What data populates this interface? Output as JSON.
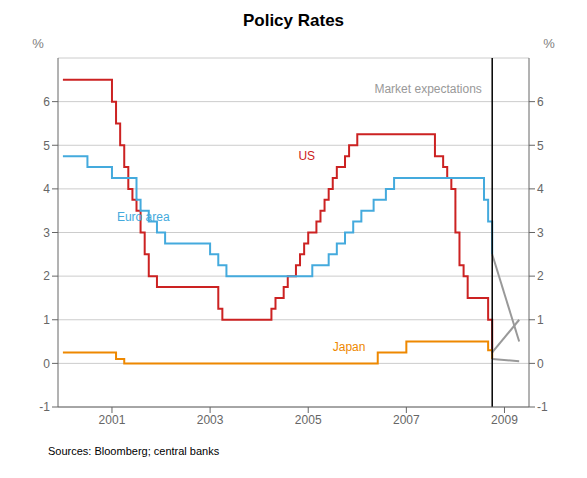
{
  "chart_data": {
    "type": "line",
    "title": "Policy Rates",
    "source": "Sources: Bloomberg; central banks",
    "ylabel": "%",
    "y2label": "%",
    "xlim": [
      1999.9,
      2009.5
    ],
    "xticks": [
      2001,
      2003,
      2005,
      2007,
      2009
    ],
    "ylim": [
      -1,
      7
    ],
    "yticks": [
      -1,
      0,
      1,
      2,
      3,
      4,
      5,
      6
    ],
    "y2lim": [
      -1,
      7
    ],
    "y2ticks": [
      -1,
      0,
      1,
      2,
      3,
      4,
      5,
      6
    ],
    "grid": true,
    "series": [
      {
        "name": "US",
        "type": "step",
        "color": "#cc2222",
        "x": [
          2000.0,
          2001.0,
          2001.0,
          2001.083,
          2001.167,
          2001.25,
          2001.333,
          2001.417,
          2001.5,
          2001.583,
          2001.667,
          2001.75,
          2001.917,
          2002.0,
          2003.167,
          2003.25,
          2003.583,
          2004.25,
          2004.333,
          2004.5,
          2004.583,
          2004.75,
          2004.833,
          2004.917,
          2005.0,
          2005.167,
          2005.25,
          2005.333,
          2005.417,
          2005.5,
          2005.583,
          2005.75,
          2005.833,
          2006.0,
          2006.583,
          2007.583,
          2007.583,
          2007.75,
          2007.833,
          2007.917,
          2008.0,
          2008.083,
          2008.167,
          2008.25,
          2008.667,
          2008.75
        ],
        "values": [
          6.5,
          6.5,
          6.0,
          5.5,
          5.0,
          4.5,
          4.0,
          3.75,
          3.5,
          3.0,
          2.5,
          2.0,
          1.75,
          1.75,
          1.25,
          1.0,
          1.0,
          1.25,
          1.5,
          1.75,
          2.0,
          2.25,
          2.5,
          2.75,
          3.0,
          3.25,
          3.5,
          3.75,
          4.0,
          4.25,
          4.5,
          4.75,
          5.0,
          5.25,
          5.25,
          5.25,
          4.75,
          4.5,
          4.25,
          4.0,
          3.0,
          2.25,
          2.0,
          1.5,
          1.0,
          0.25
        ]
      },
      {
        "name": "Euro area",
        "type": "step",
        "color": "#44aadd",
        "x": [
          2000.0,
          2000.5,
          2000.5,
          2001.0,
          2001.0,
          2001.5,
          2001.583,
          2001.75,
          2001.917,
          2002.083,
          2003.0,
          2003.167,
          2003.333,
          2005.0,
          2005.083,
          2005.417,
          2005.583,
          2005.75,
          2005.917,
          2006.083,
          2006.333,
          2006.583,
          2006.75,
          2008.333,
          2008.583,
          2008.667,
          2008.75
        ],
        "values": [
          4.75,
          4.75,
          4.5,
          4.5,
          4.25,
          3.75,
          3.5,
          3.25,
          3.0,
          2.75,
          2.5,
          2.25,
          2.0,
          2.0,
          2.25,
          2.5,
          2.75,
          3.0,
          3.25,
          3.5,
          3.75,
          4.0,
          4.25,
          4.25,
          3.75,
          3.25,
          2.5
        ]
      },
      {
        "name": "Japan",
        "type": "step",
        "color": "#ee8800",
        "x": [
          2000.0,
          2001.0,
          2001.083,
          2001.25,
          2006.333,
          2006.417,
          2007.0,
          2008.583,
          2008.667,
          2008.75
        ],
        "values": [
          0.25,
          0.25,
          0.1,
          0.0,
          0.0,
          0.25,
          0.5,
          0.5,
          0.3,
          0.1
        ]
      },
      {
        "name": "Market expectations",
        "type": "line",
        "color": "#999999",
        "x": [
          2008.75,
          2009.3
        ],
        "values": [
          0.25,
          1.0
        ]
      },
      {
        "name": "Market expectations",
        "type": "line",
        "color": "#999999",
        "x": [
          2008.75,
          2009.3
        ],
        "values": [
          2.5,
          0.5
        ]
      },
      {
        "name": "Market expectations",
        "type": "line",
        "color": "#999999",
        "x": [
          2008.75,
          2009.3
        ],
        "values": [
          0.1,
          0.05
        ]
      }
    ],
    "vertical_line": {
      "x": 2008.75,
      "color": "#000000"
    },
    "annotations": [
      {
        "text": "US",
        "x": 2004.8,
        "y": 4.75,
        "color": "#cc2222"
      },
      {
        "text": "Euro area",
        "x": 2001.1,
        "y": 3.35,
        "color": "#44aadd"
      },
      {
        "text": "Japan",
        "x": 2005.5,
        "y": 0.38,
        "color": "#ee8800"
      },
      {
        "text": "Market expectations",
        "x": 2006.35,
        "y": 6.3,
        "color": "#999999"
      }
    ]
  }
}
